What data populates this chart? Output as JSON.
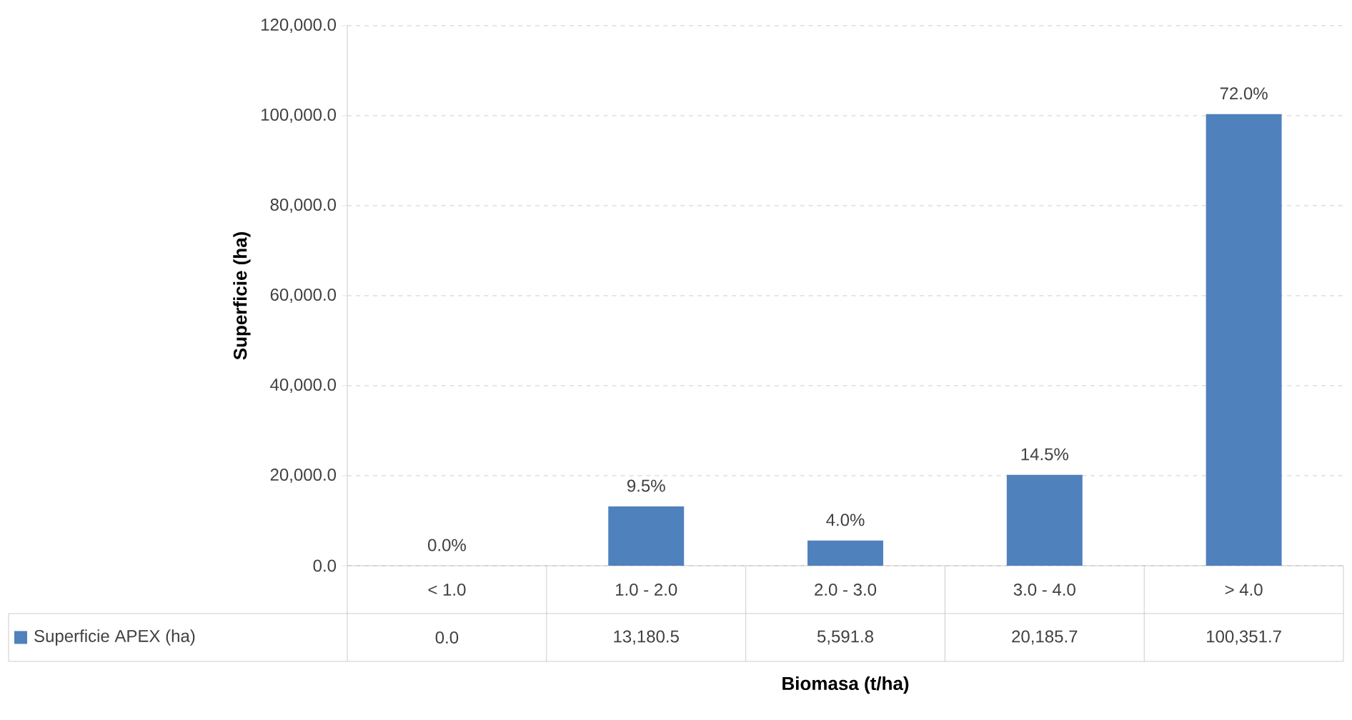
{
  "chart_data": {
    "type": "bar",
    "xlabel": "Biomasa (t/ha)",
    "ylabel": "Superficie (ha)",
    "categories": [
      "< 1.0",
      "1.0 - 2.0",
      "2.0 - 3.0",
      "3.0 - 4.0",
      "> 4.0"
    ],
    "series": [
      {
        "name": "Superficie APEX (ha)",
        "color": "#4f81bd",
        "values": [
          0.0,
          13180.5,
          5591.8,
          20185.7,
          100351.7
        ],
        "value_labels": [
          "0.0",
          "13,180.5",
          "5,591.8",
          "20,185.7",
          "100,351.7"
        ]
      }
    ],
    "annotations": [
      {
        "text": "0.0%",
        "x": "< 1.0",
        "y": 0.0
      },
      {
        "text": "9.5%",
        "x": "1.0 - 2.0",
        "y": 13180.5
      },
      {
        "text": "4.0%",
        "x": "2.0 - 3.0",
        "y": 5591.8
      },
      {
        "text": "14.5%",
        "x": "3.0 - 4.0",
        "y": 20185.7
      },
      {
        "text": "72.0%",
        "x": "> 4.0",
        "y": 100351.7
      }
    ],
    "ylim": [
      0,
      120000
    ],
    "yticks": [
      {
        "value": 0,
        "label": "0.0"
      },
      {
        "value": 20000,
        "label": "20,000.0"
      },
      {
        "value": 40000,
        "label": "40,000.0"
      },
      {
        "value": 60000,
        "label": "60,000.0"
      },
      {
        "value": 80000,
        "label": "80,000.0"
      },
      {
        "value": 100000,
        "label": "100,000.0"
      },
      {
        "value": 120000,
        "label": "120,000.0"
      }
    ],
    "grid": "y",
    "legend": "bottom",
    "data_labels": true
  }
}
